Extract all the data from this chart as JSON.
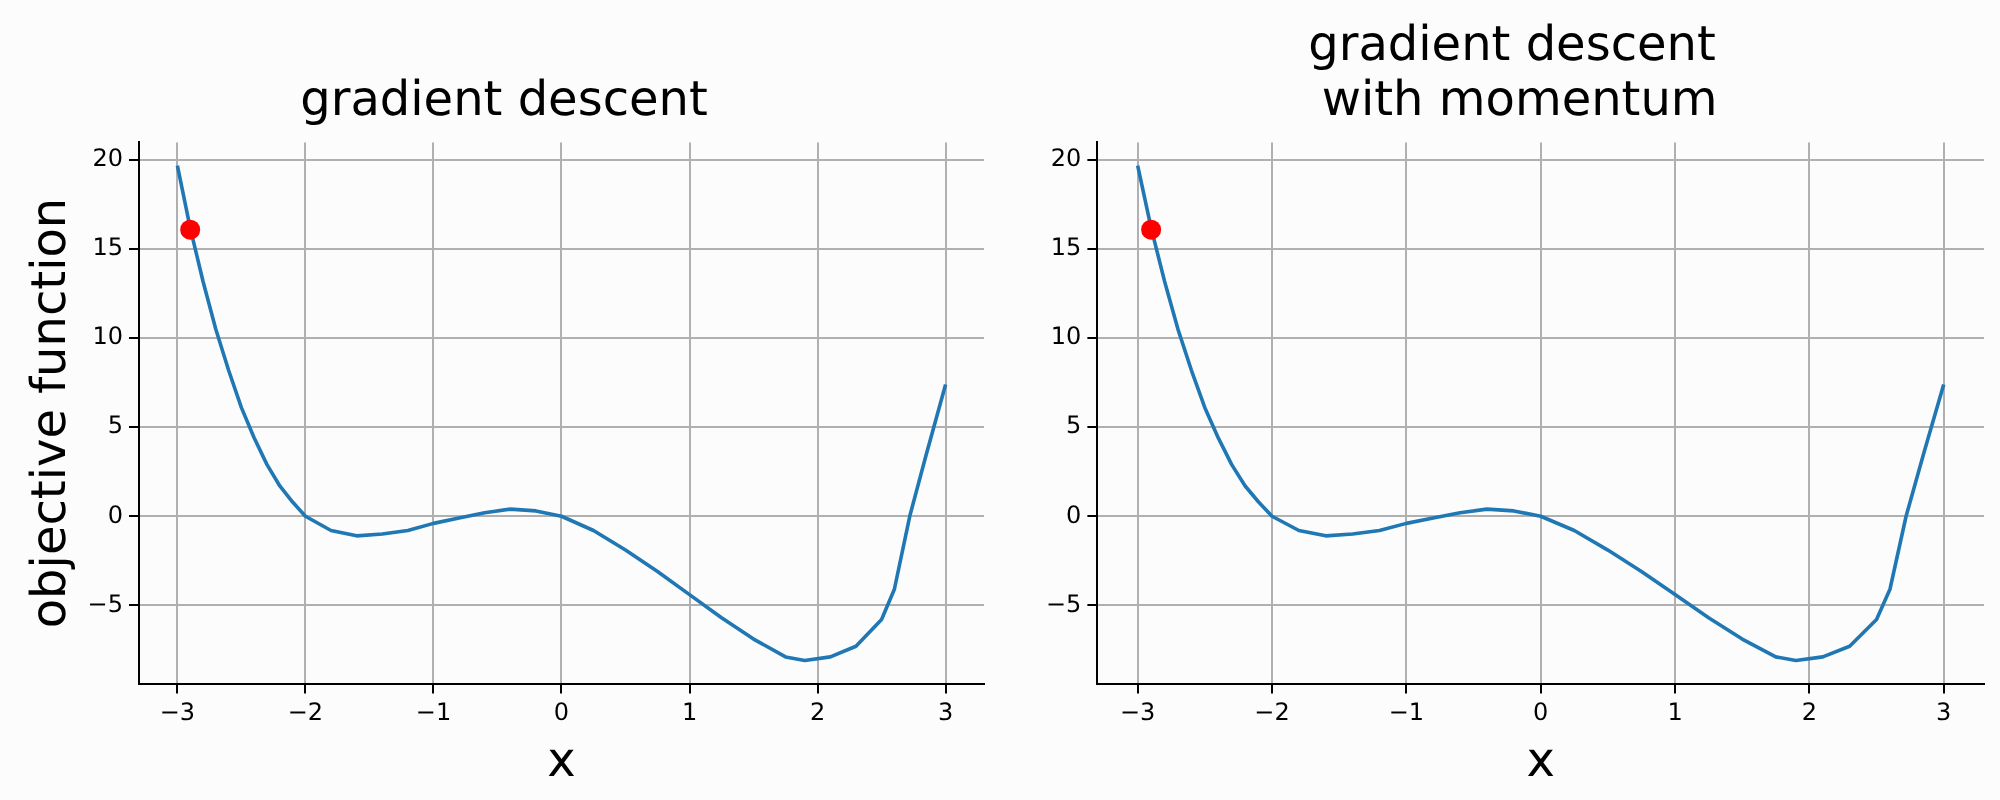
{
  "chart_data": [
    {
      "type": "line",
      "title": "gradient descent",
      "xlabel": "x",
      "ylabel": "objective function",
      "xlim": [
        -3.3,
        3.3
      ],
      "ylim": [
        -9.4,
        21
      ],
      "xticks": [
        {
          "value": -3,
          "label": "−3"
        },
        {
          "value": -2,
          "label": "−2"
        },
        {
          "value": -1,
          "label": "−1"
        },
        0,
        1,
        2,
        3
      ],
      "yticks": [
        {
          "value": -5,
          "label": "−5"
        },
        0,
        5,
        10,
        15,
        20
      ],
      "grid": true,
      "legend": false,
      "series": [
        {
          "type": "line",
          "color": "#1f77b4",
          "marker": "none",
          "line_style": "solid",
          "x": [
            -3,
            -2.9,
            -2.8,
            -2.7,
            -2.6,
            -2.5,
            -2.4,
            -2.3,
            -2.2,
            -2.1,
            -2,
            -1.8,
            -1.6,
            -1.4,
            -1.2,
            -1,
            -0.8,
            -0.6,
            -0.4,
            -0.2,
            0,
            0.25,
            0.5,
            0.75,
            1,
            1.25,
            1.5,
            1.75,
            1.9,
            2.1,
            2.3,
            2.5,
            2.6,
            2.72,
            2.85,
            3
          ],
          "values": [
            19.7,
            16.2,
            13.2,
            10.5,
            8.2,
            6.1,
            4.4,
            2.9,
            1.7,
            0.8,
            0,
            -0.8,
            -1.1,
            -1.0,
            -0.8,
            -0.4,
            -0.1,
            0.2,
            0.4,
            0.3,
            0,
            -0.8,
            -1.9,
            -3.1,
            -4.4,
            -5.7,
            -6.9,
            -7.9,
            -8.1,
            -7.9,
            -7.3,
            -5.8,
            -4.1,
            0,
            3.5,
            7.4
          ]
        },
        {
          "type": "scatter",
          "color": "#ff0000",
          "marker": "circle",
          "x": [
            -2.9
          ],
          "values": [
            16.1
          ]
        }
      ]
    },
    {
      "type": "line",
      "title": "gradient descent\n with momentum",
      "xlabel": "x",
      "xlim": [
        -3.3,
        3.3
      ],
      "ylim": [
        -9.4,
        21
      ],
      "xticks": [
        {
          "value": -3,
          "label": "−3"
        },
        {
          "value": -2,
          "label": "−2"
        },
        {
          "value": -1,
          "label": "−1"
        },
        0,
        1,
        2,
        3
      ],
      "yticks": [
        {
          "value": -5,
          "label": "−5"
        },
        0,
        5,
        10,
        15,
        20
      ],
      "grid": true,
      "legend": false,
      "series": [
        {
          "type": "line",
          "color": "#1f77b4",
          "marker": "none",
          "line_style": "solid",
          "x": [
            -3,
            -2.9,
            -2.8,
            -2.7,
            -2.6,
            -2.5,
            -2.4,
            -2.3,
            -2.2,
            -2.1,
            -2,
            -1.8,
            -1.6,
            -1.4,
            -1.2,
            -1,
            -0.8,
            -0.6,
            -0.4,
            -0.2,
            0,
            0.25,
            0.5,
            0.75,
            1,
            1.25,
            1.5,
            1.75,
            1.9,
            2.1,
            2.3,
            2.5,
            2.6,
            2.72,
            2.85,
            3
          ],
          "values": [
            19.7,
            16.2,
            13.2,
            10.5,
            8.2,
            6.1,
            4.4,
            2.9,
            1.7,
            0.8,
            0,
            -0.8,
            -1.1,
            -1.0,
            -0.8,
            -0.4,
            -0.1,
            0.2,
            0.4,
            0.3,
            0,
            -0.8,
            -1.9,
            -3.1,
            -4.4,
            -5.7,
            -6.9,
            -7.9,
            -8.1,
            -7.9,
            -7.3,
            -5.8,
            -4.1,
            0,
            3.5,
            7.4
          ]
        },
        {
          "type": "scatter",
          "color": "#ff0000",
          "marker": "circle",
          "x": [
            -2.9
          ],
          "values": [
            16.1
          ]
        }
      ]
    }
  ]
}
